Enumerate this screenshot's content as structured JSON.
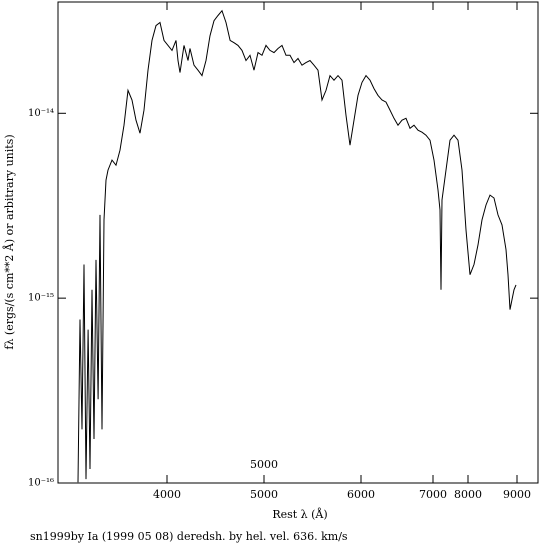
{
  "chart_data": {
    "type": "line",
    "x_label": "Rest λ (Å)",
    "y_label": "fλ (ergs/(s cm**2 Å) or arbitrary units)",
    "footer": "sn1999by Ia (1999 05 08) deredsh. by hel. vel.   636. km/s",
    "annotation": "5000",
    "color": "#000000",
    "yscale": "log",
    "xlim": [
      2876,
      9429
    ],
    "ylim": [
      1e-16,
      4e-14
    ],
    "xticks": [
      4000,
      5000,
      6000,
      7000,
      8000,
      9000
    ],
    "yticks": [
      {
        "value": 1e-16,
        "label": "10⁻¹⁶"
      },
      {
        "value": 1e-15,
        "label": "10⁻¹⁵"
      },
      {
        "value": 1e-14,
        "label": "10⁻¹⁴"
      }
    ],
    "x": [
      3082,
      3103,
      3124,
      3144,
      3165,
      3186,
      3206,
      3227,
      3247,
      3268,
      3289,
      3309,
      3330,
      3350,
      3371,
      3392,
      3433,
      3474,
      3515,
      3557,
      3598,
      3639,
      3680,
      3722,
      3763,
      3804,
      3845,
      3887,
      3928,
      3969,
      4010,
      4052,
      4093,
      4113,
      4134,
      4175,
      4217,
      4237,
      4278,
      4320,
      4361,
      4402,
      4443,
      4485,
      4526,
      4567,
      4608,
      4650,
      4691,
      4732,
      4773,
      4814,
      4856,
      4897,
      4938,
      4979,
      5021,
      5062,
      5103,
      5144,
      5186,
      5227,
      5268,
      5309,
      5351,
      5392,
      5433,
      5474,
      5515,
      5557,
      5598,
      5639,
      5680,
      5722,
      5763,
      5804,
      5845,
      5887,
      5928,
      5969,
      6014,
      6069,
      6125,
      6181,
      6236,
      6292,
      6347,
      6403,
      6458,
      6514,
      6569,
      6625,
      6681,
      6736,
      6792,
      6847,
      6903,
      6958,
      7029,
      7143,
      7200,
      7229,
      7257,
      7371,
      7486,
      7600,
      7714,
      7829,
      7943,
      8041,
      8122,
      8204,
      8286,
      8367,
      8449,
      8531,
      8612,
      8694,
      8776,
      8816,
      8857,
      8898,
      8939,
      8980
    ],
    "values": [
      1.01e-16,
      7.66e-16,
      1.95e-16,
      1.52e-15,
      1.05e-16,
      6.76e-16,
      1.19e-16,
      1.11e-15,
      1.73e-16,
      1.61e-15,
      2.84e-16,
      2.82e-15,
      1.95e-16,
      2.65e-15,
      4.35e-15,
      4.93e-15,
      5.58e-15,
      5.24e-15,
      6.32e-15,
      8.62e-15,
      1.33e-14,
      1.18e-14,
      9.17e-15,
      7.8e-15,
      1.04e-14,
      1.71e-14,
      2.48e-14,
      2.98e-14,
      3.1e-14,
      2.48e-14,
      2.33e-14,
      2.19e-14,
      2.48e-14,
      1.93e-14,
      1.66e-14,
      2.33e-14,
      1.93e-14,
      2.24e-14,
      1.82e-14,
      1.71e-14,
      1.6e-14,
      1.93e-14,
      2.63e-14,
      3.17e-14,
      3.38e-14,
      3.59e-14,
      3.1e-14,
      2.48e-14,
      2.41e-14,
      2.33e-14,
      2.19e-14,
      1.93e-14,
      2.06e-14,
      1.71e-14,
      2.13e-14,
      2.06e-14,
      2.33e-14,
      2.19e-14,
      2.13e-14,
      2.24e-14,
      2.33e-14,
      2.06e-14,
      2.06e-14,
      1.88e-14,
      1.98e-14,
      1.82e-14,
      1.88e-14,
      1.93e-14,
      1.82e-14,
      1.71e-14,
      1.18e-14,
      1.33e-14,
      1.6e-14,
      1.51e-14,
      1.6e-14,
      1.51e-14,
      9.75e-15,
      6.72e-15,
      9.17e-15,
      1.25e-14,
      1.47e-14,
      1.6e-14,
      1.51e-14,
      1.36e-14,
      1.25e-14,
      1.18e-14,
      1.15e-14,
      1.04e-14,
      9.4e-15,
      8.62e-15,
      9.17e-15,
      9.4e-15,
      8.3e-15,
      8.62e-15,
      8.1e-15,
      7.9e-15,
      7.61e-15,
      7.15e-15,
      5.58e-15,
      3.85e-15,
      3e-15,
      1.11e-15,
      3.4e-15,
      4.93e-15,
      7.15e-15,
      7.61e-15,
      7.15e-15,
      4.93e-15,
      2.34e-15,
      1.34e-15,
      1.52e-15,
      1.94e-15,
      2.65e-15,
      3.19e-15,
      3.61e-15,
      3.48e-15,
      2.82e-15,
      2.49e-15,
      1.83e-15,
      1.34e-15,
      8.67e-16,
      9.82e-16,
      1.11e-15,
      1.18e-15
    ]
  }
}
